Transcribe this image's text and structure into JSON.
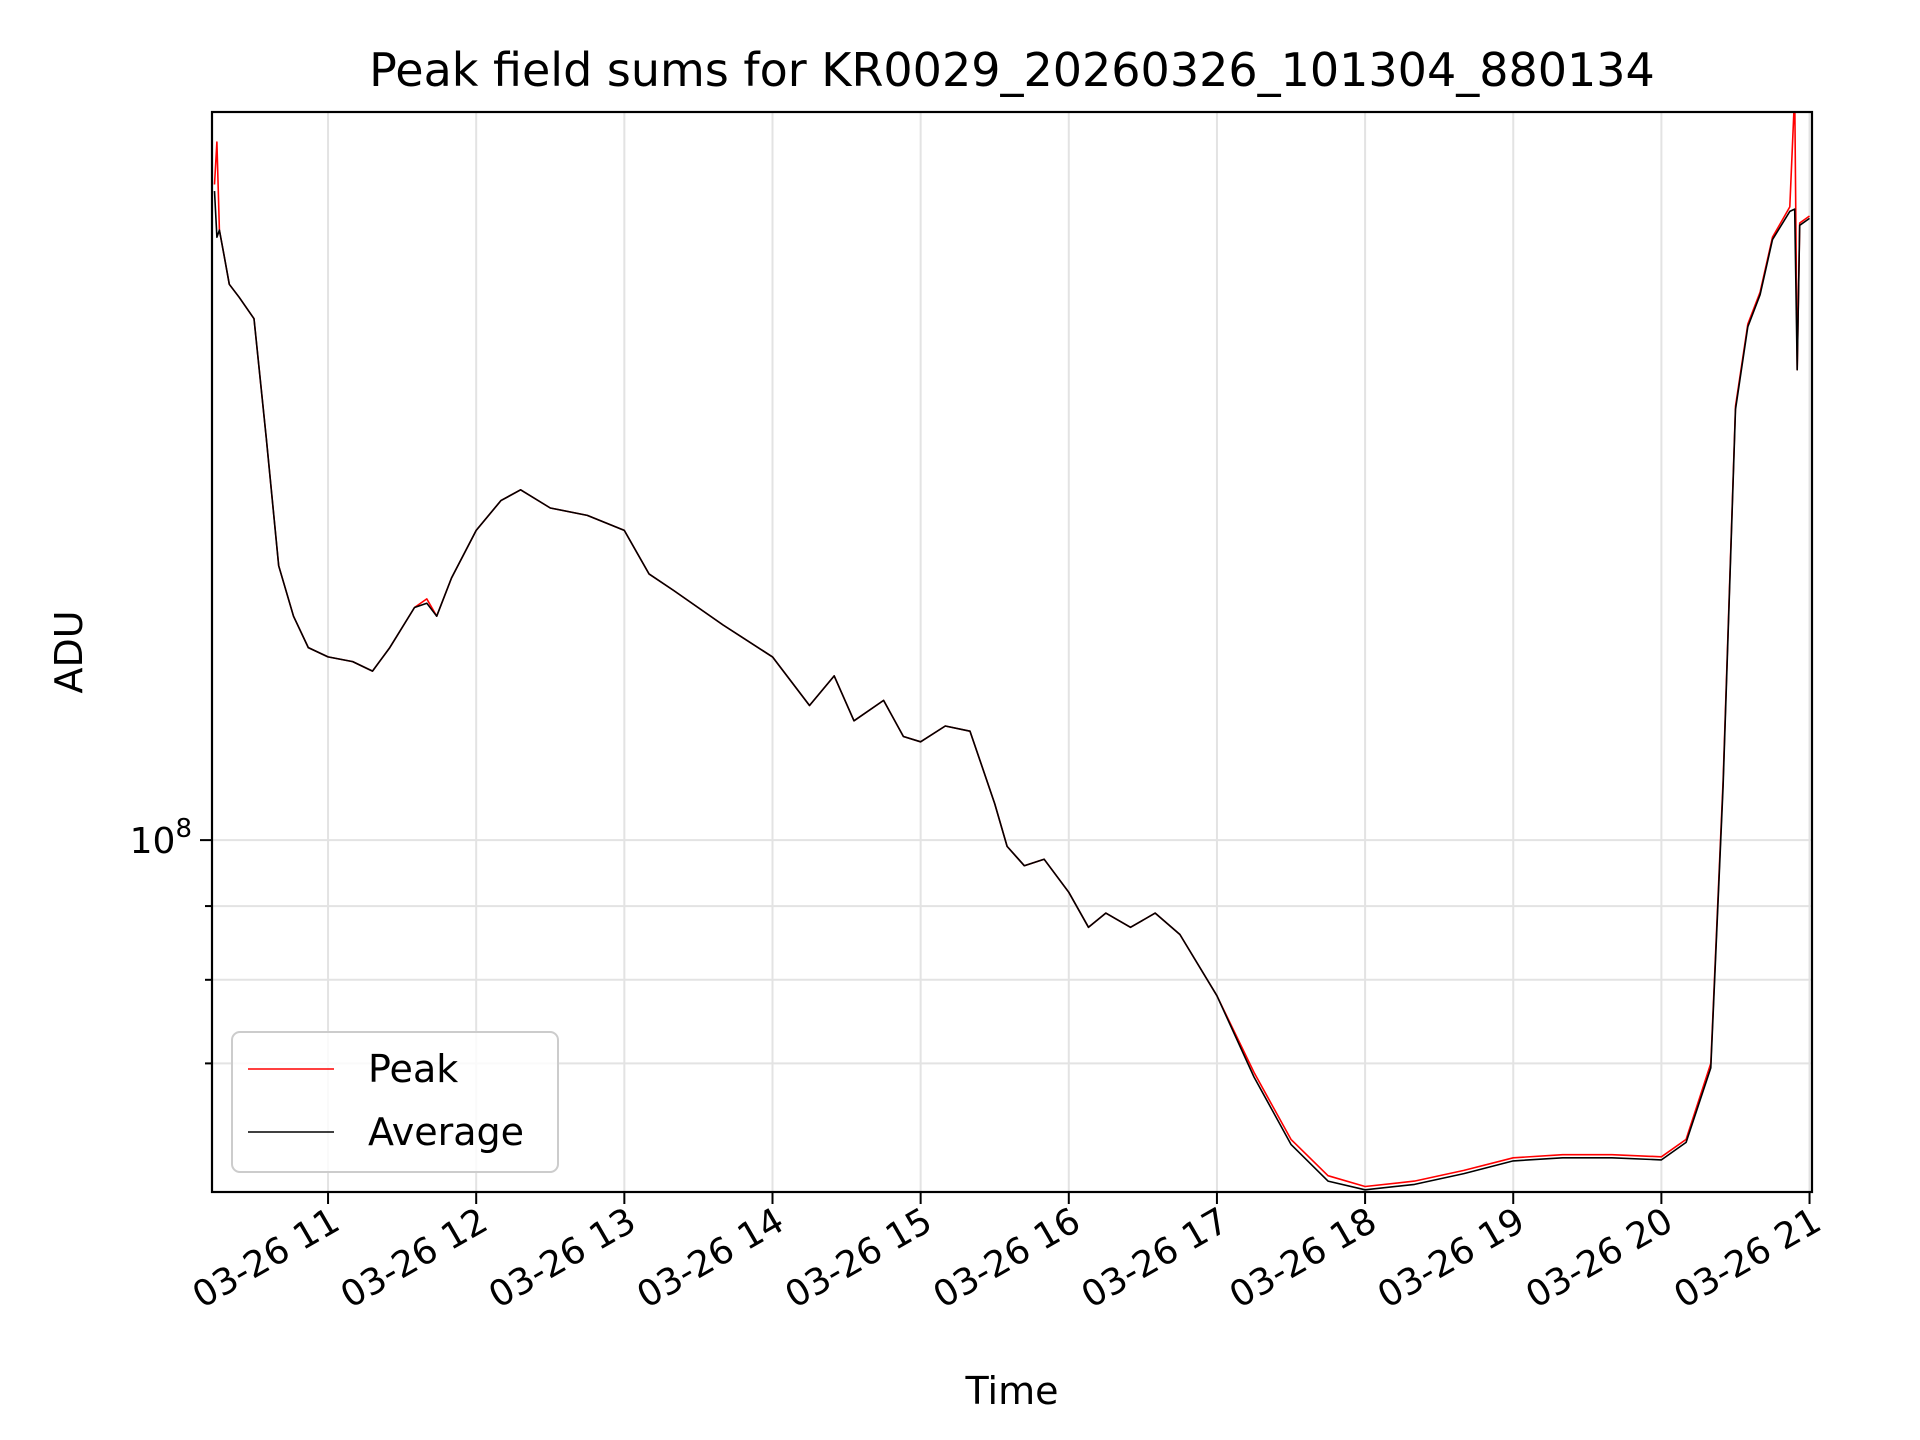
{
  "chart_data": {
    "type": "line",
    "title": "Peak field sums for KR0029_20260326_101304_880134",
    "xlabel": "Time",
    "ylabel": "ADU",
    "yscale": "log",
    "grid": true,
    "legend_position": "lower-left",
    "x_start": "03-26 10:13",
    "x_end": "03-26 21:00",
    "xlim": [
      "03-26 10:13",
      "03-26 21:01"
    ],
    "ylim": [
      57000000,
      320000000
    ],
    "x_ticks": [
      "03-26 11",
      "03-26 12",
      "03-26 13",
      "03-26 14",
      "03-26 15",
      "03-26 16",
      "03-26 17",
      "03-26 18",
      "03-26 19",
      "03-26 20",
      "03-26 21"
    ],
    "y_ticks": [
      {
        "value": 100000000,
        "base": "10",
        "exp": "8"
      },
      {
        "value": 70000000,
        "base": "",
        "exp": ""
      },
      {
        "value": 80000000,
        "base": "",
        "exp": ""
      },
      {
        "value": 90000000,
        "base": "",
        "exp": ""
      }
    ],
    "series": [
      {
        "name": "Peak",
        "color": "#ff0000",
        "x": [
          "03-26 10:14",
          "03-26 10:15",
          "03-26 10:16",
          "03-26 10:18",
          "03-26 10:20",
          "03-26 10:24",
          "03-26 10:30",
          "03-26 10:35",
          "03-26 10:40",
          "03-26 10:46",
          "03-26 10:52",
          "03-26 11:00",
          "03-26 11:10",
          "03-26 11:18",
          "03-26 11:25",
          "03-26 11:35",
          "03-26 11:40",
          "03-26 11:44",
          "03-26 11:50",
          "03-26 12:00",
          "03-26 12:10",
          "03-26 12:18",
          "03-26 12:30",
          "03-26 12:45",
          "03-26 13:00",
          "03-26 13:10",
          "03-26 13:20",
          "03-26 13:40",
          "03-26 14:00",
          "03-26 14:15",
          "03-26 14:25",
          "03-26 14:33",
          "03-26 14:45",
          "03-26 14:53",
          "03-26 15:00",
          "03-26 15:10",
          "03-26 15:20",
          "03-26 15:30",
          "03-26 15:35",
          "03-26 15:42",
          "03-26 15:50",
          "03-26 16:00",
          "03-26 16:08",
          "03-26 16:15",
          "03-26 16:25",
          "03-26 16:35",
          "03-26 16:45",
          "03-26 17:00",
          "03-26 17:15",
          "03-26 17:30",
          "03-26 17:45",
          "03-26 18:00",
          "03-26 18:20",
          "03-26 18:40",
          "03-26 19:00",
          "03-26 19:20",
          "03-26 19:40",
          "03-26 20:00",
          "03-26 20:10",
          "03-26 20:20",
          "03-26 20:25",
          "03-26 20:30",
          "03-26 20:35",
          "03-26 20:40",
          "03-26 20:45",
          "03-26 20:52",
          "03-26 20:54",
          "03-26 20:55",
          "03-26 20:56",
          "03-26 21:00"
        ],
        "values": [
          285000000,
          305000000,
          265000000,
          254000000,
          243000000,
          238000000,
          230000000,
          190000000,
          155000000,
          143000000,
          136000000,
          134000000,
          133000000,
          131000000,
          136000000,
          145000000,
          147000000,
          143000000,
          152000000,
          164000000,
          172000000,
          175000000,
          170000000,
          168000000,
          164000000,
          153000000,
          149000000,
          141000000,
          134000000,
          124000000,
          130000000,
          121000000,
          125000000,
          118000000,
          117000000,
          120000000,
          119000000,
          106000000,
          99000000,
          96000000,
          97000000,
          92000000,
          87000000,
          89000000,
          87000000,
          89000000,
          86000000,
          78000000,
          69000000,
          62000000,
          58500000,
          57500000,
          58000000,
          59000000,
          60200000,
          60500000,
          60500000,
          60300000,
          62000000,
          70000000,
          110000000,
          200000000,
          228000000,
          240000000,
          262000000,
          275000000,
          330000000,
          212000000,
          268000000,
          271000000
        ]
      },
      {
        "name": "Average",
        "color": "#000000",
        "x": [
          "03-26 10:14",
          "03-26 10:15",
          "03-26 10:16",
          "03-26 10:18",
          "03-26 10:20",
          "03-26 10:24",
          "03-26 10:30",
          "03-26 10:35",
          "03-26 10:40",
          "03-26 10:46",
          "03-26 10:52",
          "03-26 11:00",
          "03-26 11:10",
          "03-26 11:18",
          "03-26 11:25",
          "03-26 11:35",
          "03-26 11:40",
          "03-26 11:44",
          "03-26 11:50",
          "03-26 12:00",
          "03-26 12:10",
          "03-26 12:18",
          "03-26 12:30",
          "03-26 12:45",
          "03-26 13:00",
          "03-26 13:10",
          "03-26 13:20",
          "03-26 13:40",
          "03-26 14:00",
          "03-26 14:15",
          "03-26 14:25",
          "03-26 14:33",
          "03-26 14:45",
          "03-26 14:53",
          "03-26 15:00",
          "03-26 15:10",
          "03-26 15:20",
          "03-26 15:30",
          "03-26 15:35",
          "03-26 15:42",
          "03-26 15:50",
          "03-26 16:00",
          "03-26 16:08",
          "03-26 16:15",
          "03-26 16:25",
          "03-26 16:35",
          "03-26 16:45",
          "03-26 17:00",
          "03-26 17:15",
          "03-26 17:30",
          "03-26 17:45",
          "03-26 18:00",
          "03-26 18:20",
          "03-26 18:40",
          "03-26 19:00",
          "03-26 19:20",
          "03-26 19:40",
          "03-26 20:00",
          "03-26 20:10",
          "03-26 20:20",
          "03-26 20:25",
          "03-26 20:30",
          "03-26 20:35",
          "03-26 20:40",
          "03-26 20:45",
          "03-26 20:52",
          "03-26 20:54",
          "03-26 20:55",
          "03-26 20:56",
          "03-26 21:00"
        ],
        "values": [
          282000000,
          262000000,
          265000000,
          254000000,
          243000000,
          238000000,
          230000000,
          190000000,
          155000000,
          143000000,
          136000000,
          134000000,
          133000000,
          131000000,
          136000000,
          145000000,
          146000000,
          143000000,
          152000000,
          164000000,
          172000000,
          175000000,
          170000000,
          168000000,
          164000000,
          153000000,
          149000000,
          141000000,
          134000000,
          124000000,
          130000000,
          121000000,
          125000000,
          118000000,
          117000000,
          120000000,
          119000000,
          106000000,
          99000000,
          96000000,
          97000000,
          92000000,
          87000000,
          89000000,
          87000000,
          89000000,
          86000000,
          78000000,
          68500000,
          61500000,
          58000000,
          57200000,
          57700000,
          58700000,
          59900000,
          60200000,
          60200000,
          60000000,
          61700000,
          69500000,
          109000000,
          199000000,
          227000000,
          239000000,
          261000000,
          273000000,
          274000000,
          212000000,
          267000000,
          270000000
        ]
      }
    ]
  }
}
